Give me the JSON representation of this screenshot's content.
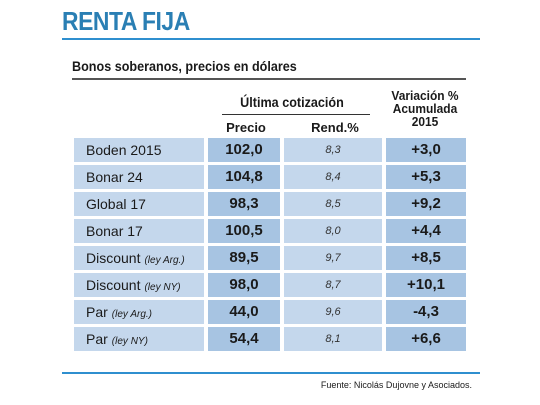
{
  "header": {
    "title": "RENTA FIJA",
    "subtitle": "Bonos soberanos, precios en dólares"
  },
  "table": {
    "group_header": "Última cotización",
    "col_precio": "Precio",
    "col_rend": "Rend.%",
    "col_var_line1": "Variación %",
    "col_var_line2": "Acumulada",
    "col_var_line3": "2015",
    "rows": [
      {
        "name": "Boden 2015",
        "note": "",
        "precio": "102,0",
        "rend": "8,3",
        "variacion": "+3,0"
      },
      {
        "name": "Bonar 24",
        "note": "",
        "precio": "104,8",
        "rend": "8,4",
        "variacion": "+5,3"
      },
      {
        "name": "Global 17",
        "note": "",
        "precio": "98,3",
        "rend": "8,5",
        "variacion": "+9,2"
      },
      {
        "name": "Bonar 17",
        "note": "",
        "precio": "100,5",
        "rend": "8,0",
        "variacion": "+4,4"
      },
      {
        "name": "Discount",
        "note": "(ley Arg.)",
        "precio": "89,5",
        "rend": "9,7",
        "variacion": "+8,5"
      },
      {
        "name": "Discount",
        "note": "(ley NY)",
        "precio": "98,0",
        "rend": "8,7",
        "variacion": "+10,1"
      },
      {
        "name": "Par",
        "note": "(ley Arg.)",
        "precio": "44,0",
        "rend": "9,6",
        "variacion": "-4,3"
      },
      {
        "name": "Par",
        "note": "(ley NY)",
        "precio": "54,4",
        "rend": "8,1",
        "variacion": "+6,6"
      }
    ]
  },
  "footer": {
    "source": "Fuente: Nicolás Dujovne y Asociados."
  },
  "colors": {
    "title": "#2a7fb4",
    "rule": "#2f8fcf",
    "cell_light": "#c4d7ec",
    "cell_dark": "#a7c4e2"
  }
}
